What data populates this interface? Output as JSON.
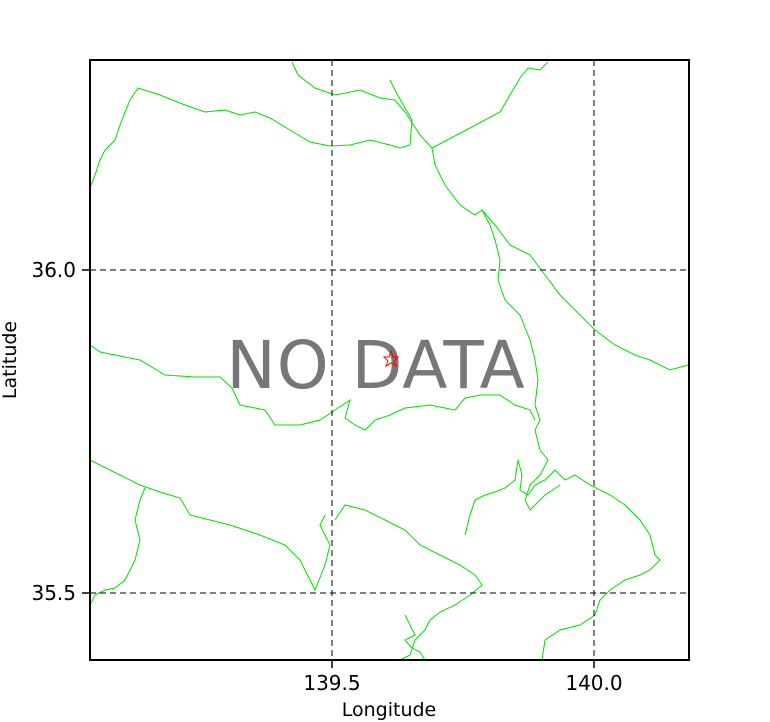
{
  "map": {
    "overlay_text": "NO DATA",
    "x_axis": {
      "label": "Longitude",
      "ticks": [
        "139.5",
        "140.0"
      ],
      "tick_values": [
        139.5,
        140.0
      ]
    },
    "y_axis": {
      "label": "Latitude",
      "ticks": [
        "36.0",
        "35.5"
      ],
      "tick_values": [
        36.0,
        35.5
      ]
    },
    "grid": true,
    "grid_style": "dashed",
    "marker": {
      "type": "star",
      "lon": 139.6,
      "lat": 35.86,
      "color": "#ff0000"
    },
    "boundary_color": "#00e000"
  }
}
